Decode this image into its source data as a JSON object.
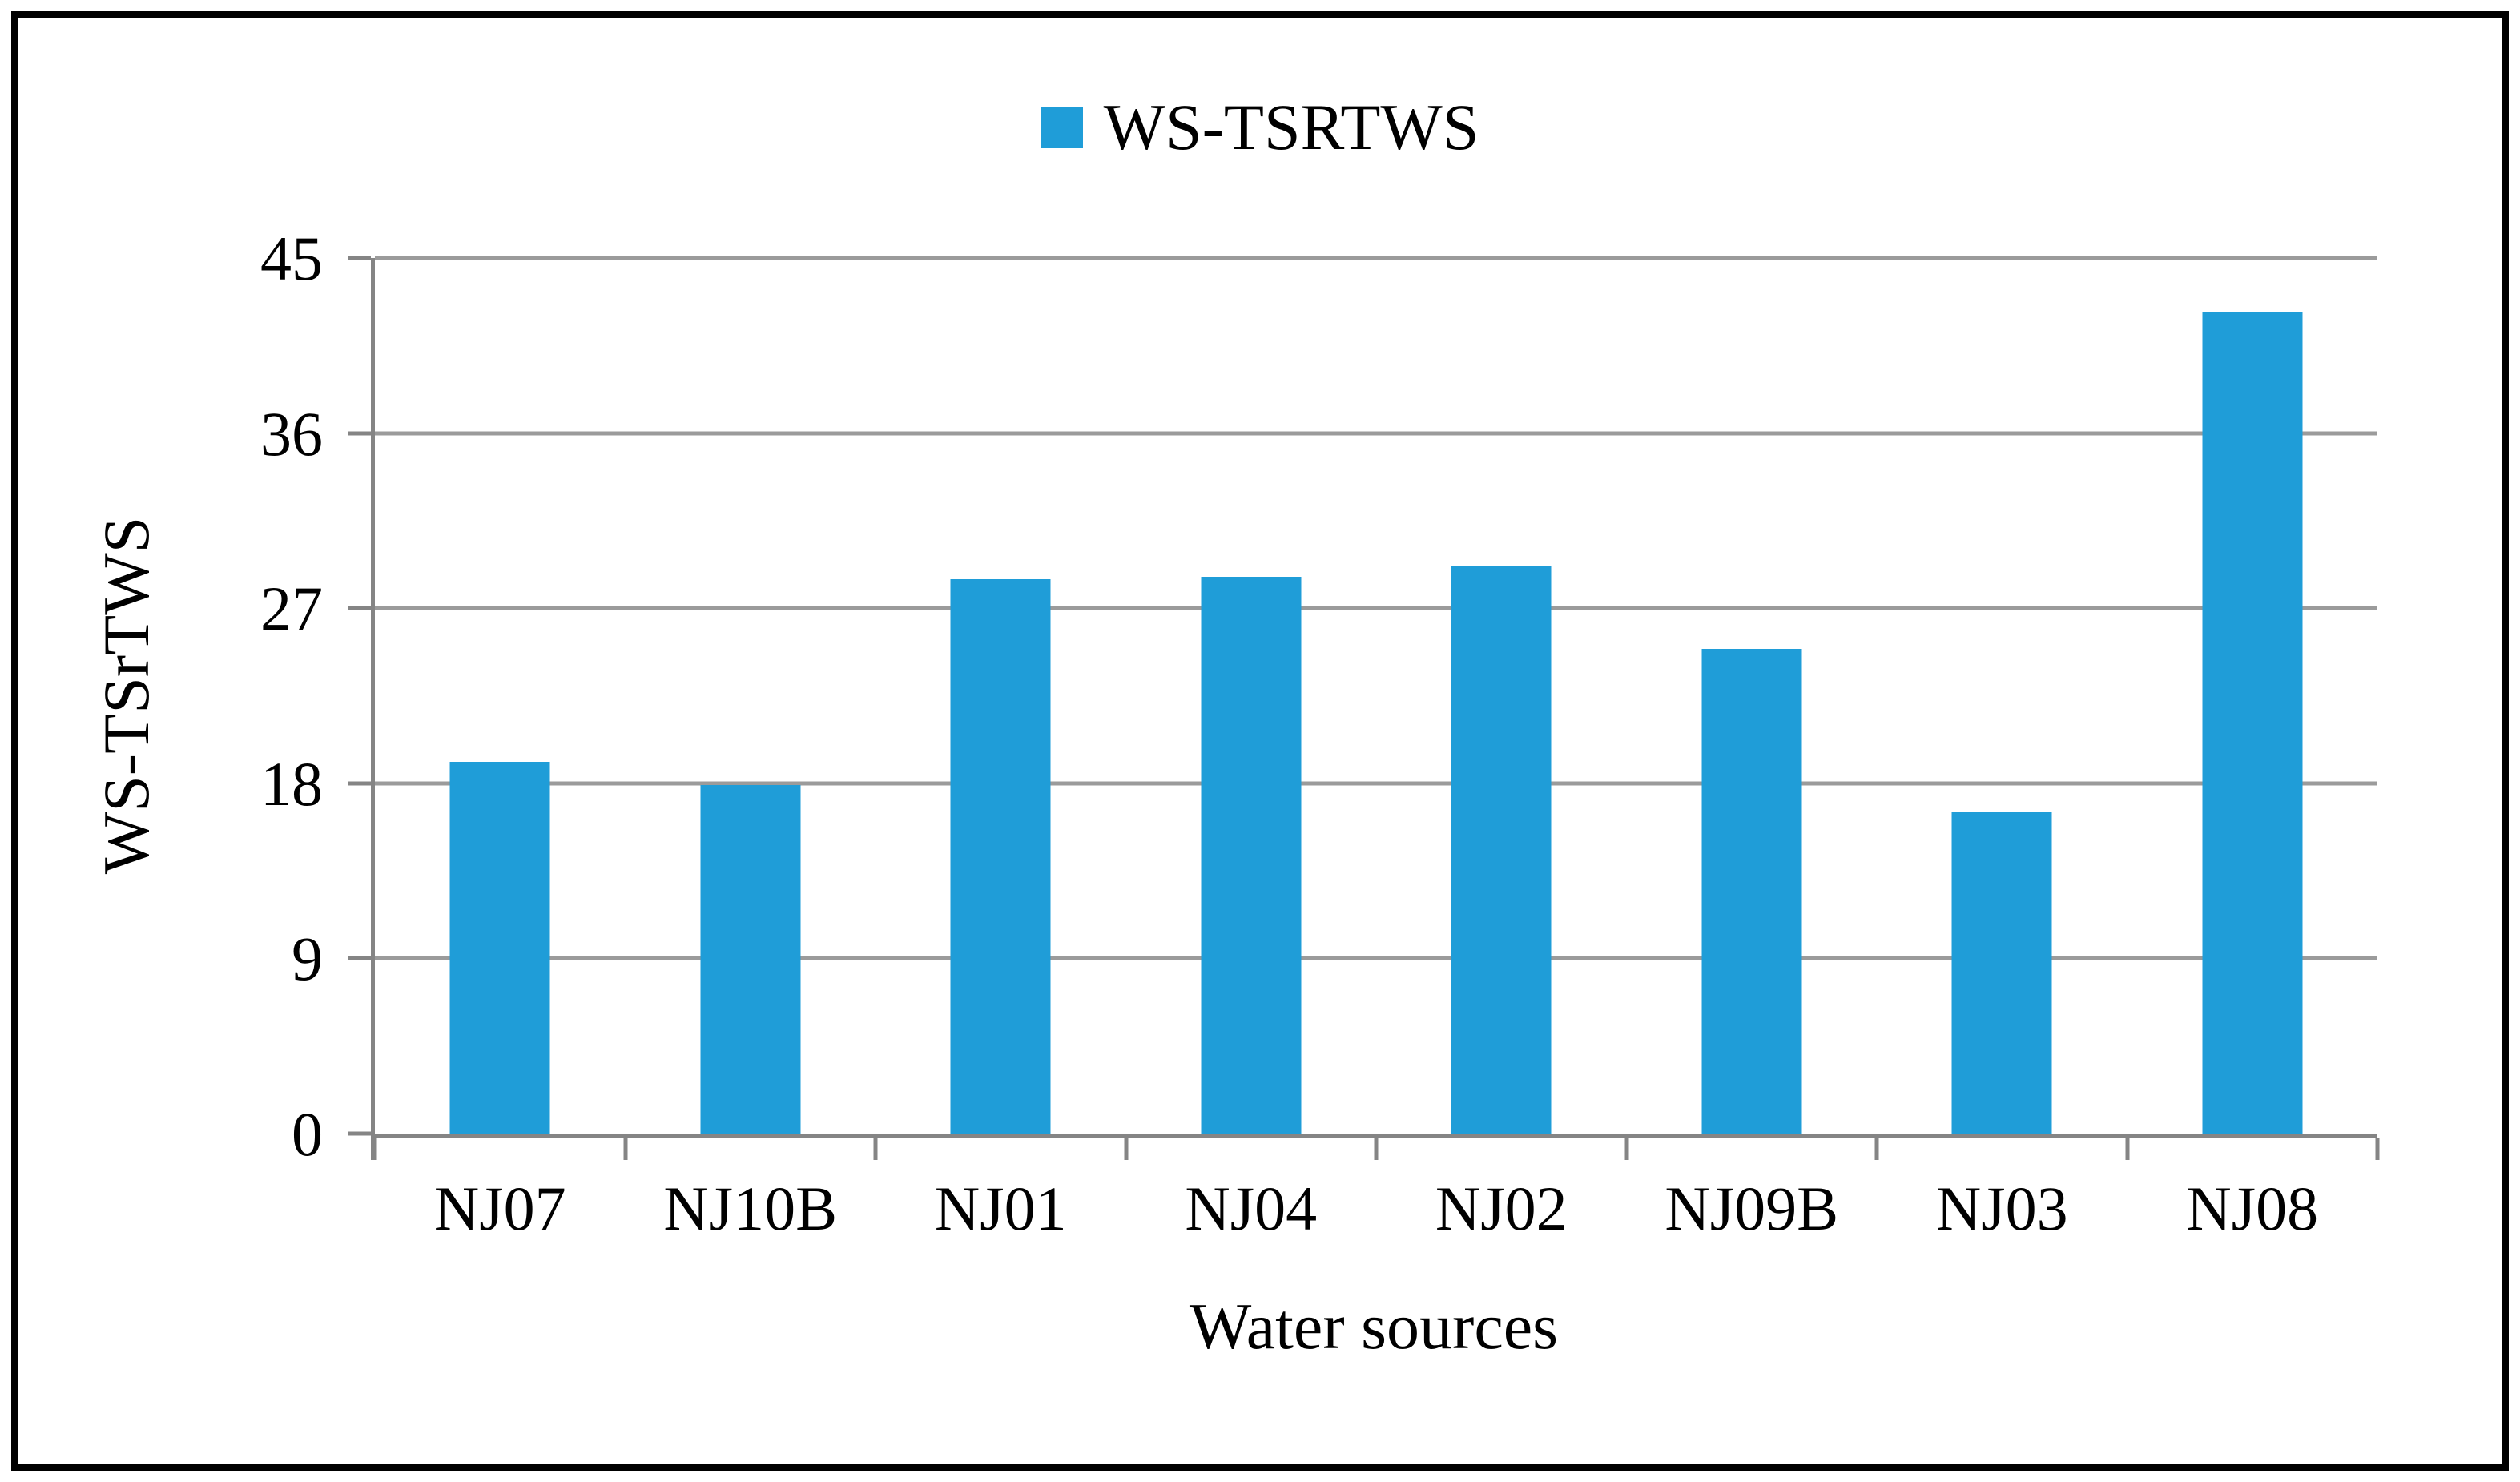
{
  "legend": {
    "label": "WS-TSRTWS"
  },
  "y_axis": {
    "title": "WS-TSrTWS",
    "tick_labels": [
      "0",
      "9",
      "18",
      "27",
      "36",
      "45"
    ]
  },
  "x_axis": {
    "title": "Water sources"
  },
  "colors": {
    "bar": "#1F9DD8",
    "gridline": "#9B9B9B",
    "axis": "#858585",
    "border": "#000000",
    "text": "#000000"
  },
  "chart_data": {
    "type": "bar",
    "categories": [
      "NJ07",
      "NJ10B",
      "NJ01",
      "NJ04",
      "NJ02",
      "NJ09B",
      "NJ03",
      "NJ08"
    ],
    "values": [
      19.1,
      17.9,
      28.5,
      28.6,
      29.2,
      24.9,
      16.5,
      42.2
    ],
    "title": "",
    "xlabel": "Water sources",
    "ylabel": "WS-TSrTWS",
    "ylim": [
      0,
      45
    ],
    "ytick_step": 9,
    "yticks": [
      0,
      9,
      18,
      27,
      36,
      45
    ],
    "grid": true,
    "legend": [
      "WS-TSRTWS"
    ],
    "legend_position": "top-center",
    "bar_color": "#1F9DD8"
  }
}
